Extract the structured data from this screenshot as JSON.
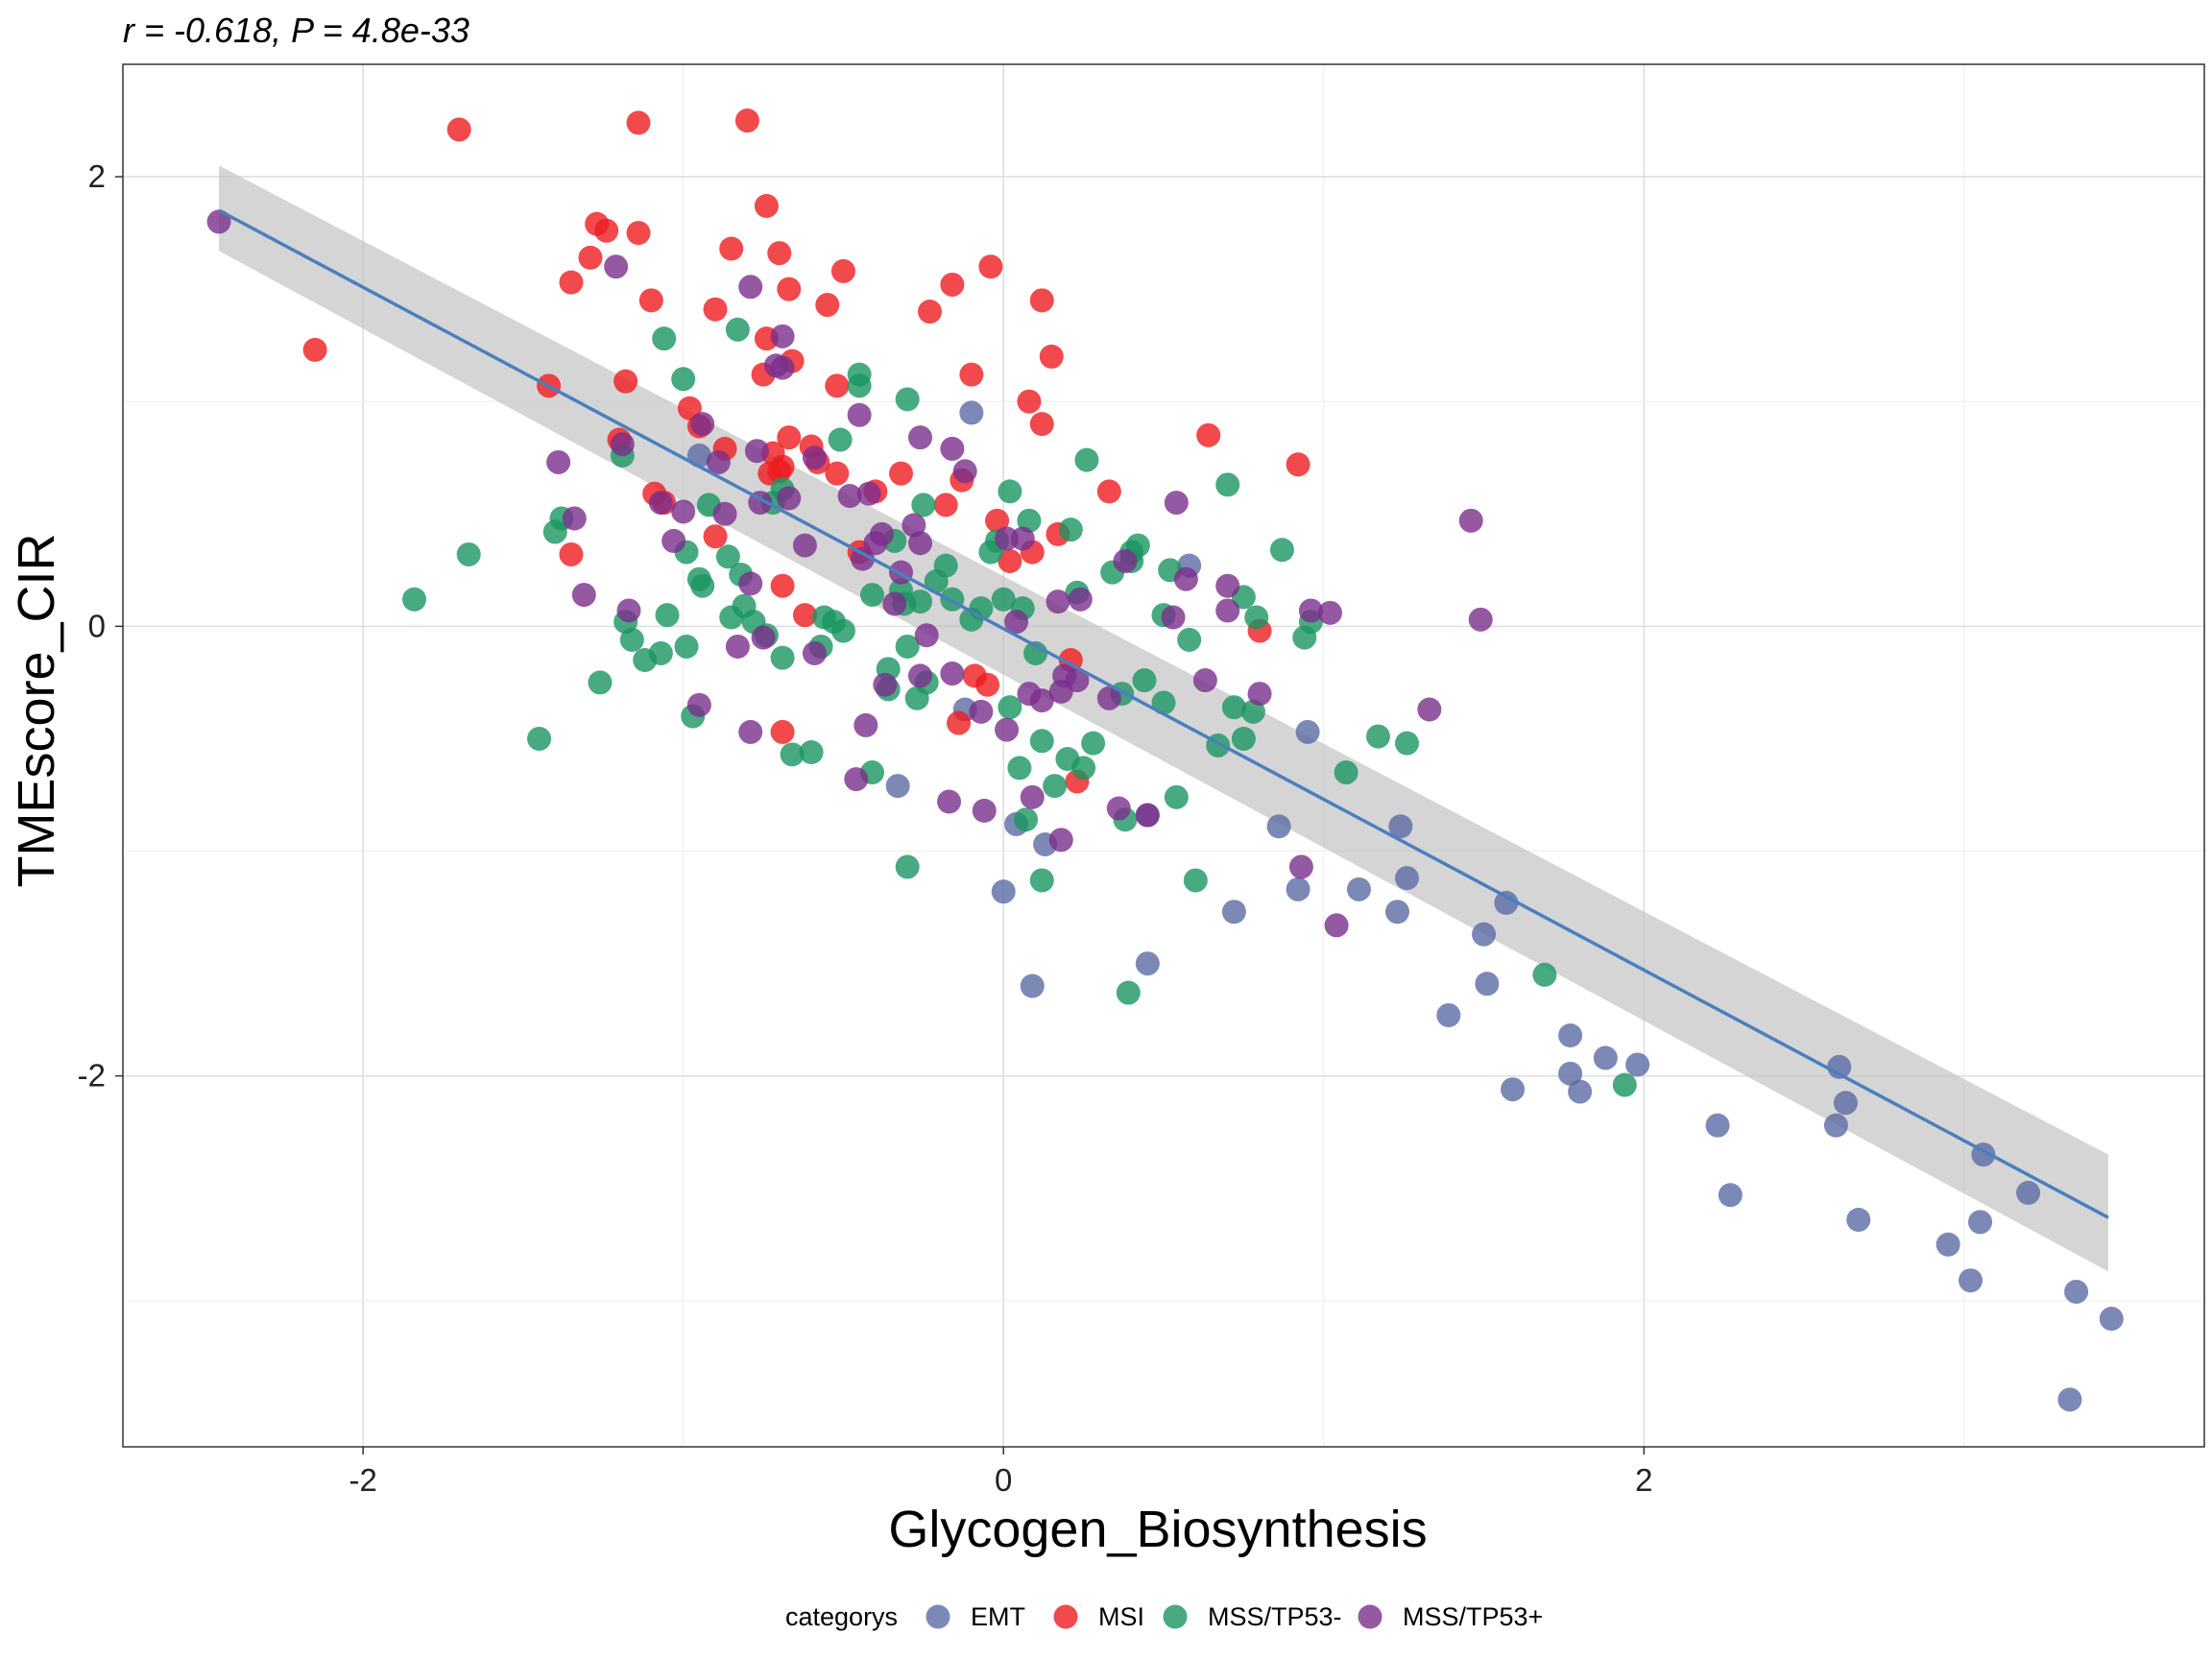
{
  "chart_data": {
    "type": "scatter",
    "title": "",
    "subtitle": "r = -0.618,  P = 4.8e-33",
    "xlabel": "Glycogen_Biosynthesis",
    "ylabel": "TMEscore_CIR",
    "xlim": [
      -2.75,
      3.75
    ],
    "ylim": [
      -3.65,
      2.5
    ],
    "x_ticks": [
      -2,
      0,
      2
    ],
    "x_tick_labels": [
      "-2",
      "0",
      "2"
    ],
    "y_ticks": [
      -2,
      0,
      2
    ],
    "y_tick_labels": [
      "-2",
      "0",
      "2"
    ],
    "grid": true,
    "legend": {
      "title": "categorys",
      "position": "bottom",
      "entries": [
        "EMT",
        "MSI",
        "MSS/TP53-",
        "MSS/TP53+"
      ]
    },
    "colors": {
      "EMT": "#5b6aa4",
      "MSI": "#ee1c1f",
      "MSS/TP53-": "#1a9560",
      "MSS/TP53+": "#7a2e8c",
      "trend_line": "#4a7fbf",
      "confidence_band": "#bfbfbf"
    },
    "trend_line": {
      "x": [
        -2.45,
        3.45
      ],
      "y": [
        1.85,
        -2.63
      ],
      "ci_lower": [
        1.67,
        -2.87
      ],
      "ci_upper": [
        2.05,
        -2.35
      ]
    },
    "series": [
      {
        "name": "EMT",
        "points": [
          [
            -0.1,
            0.95
          ],
          [
            -0.95,
            0.76
          ],
          [
            -0.12,
            -0.37
          ],
          [
            -0.33,
            -0.71
          ],
          [
            0,
            -1.18
          ],
          [
            0.04,
            -0.88
          ],
          [
            0.09,
            -1.6
          ],
          [
            0.13,
            -0.97
          ],
          [
            0.45,
            -1.5
          ],
          [
            0.45,
            -0.84
          ],
          [
            0.58,
            0.27
          ],
          [
            0.72,
            -1.27
          ],
          [
            0.86,
            -0.89
          ],
          [
            0.92,
            -1.17
          ],
          [
            0.95,
            -0.47
          ],
          [
            1.11,
            -1.17
          ],
          [
            1.23,
            -1.27
          ],
          [
            1.24,
            -0.89
          ],
          [
            1.26,
            -1.12
          ],
          [
            1.39,
            -1.73
          ],
          [
            1.5,
            -1.37
          ],
          [
            1.51,
            -1.59
          ],
          [
            1.57,
            -1.23
          ],
          [
            1.59,
            -2.06
          ],
          [
            1.77,
            -1.82
          ],
          [
            1.77,
            -1.99
          ],
          [
            1.8,
            -2.07
          ],
          [
            1.88,
            -1.92
          ],
          [
            1.98,
            -1.95
          ],
          [
            2.23,
            -2.22
          ],
          [
            2.27,
            -2.53
          ],
          [
            2.61,
            -1.96
          ],
          [
            2.6,
            -2.22
          ],
          [
            2.63,
            -2.12
          ],
          [
            2.67,
            -2.64
          ],
          [
            2.95,
            -2.75
          ],
          [
            3.02,
            -2.91
          ],
          [
            3.05,
            -2.65
          ],
          [
            3.06,
            -2.35
          ],
          [
            3.2,
            -2.52
          ],
          [
            3.33,
            -3.44
          ],
          [
            3.35,
            -2.96
          ],
          [
            3.46,
            -3.08
          ]
        ]
      },
      {
        "name": "MSI",
        "points": [
          [
            -2.15,
            1.23
          ],
          [
            -1.7,
            2.21
          ],
          [
            -1.42,
            1.07
          ],
          [
            -1.35,
            0.32
          ],
          [
            -1.35,
            1.53
          ],
          [
            -1.29,
            1.64
          ],
          [
            -1.27,
            1.79
          ],
          [
            -1.24,
            1.76
          ],
          [
            -1.2,
            0.83
          ],
          [
            -1.18,
            1.09
          ],
          [
            -1.14,
            2.24
          ],
          [
            -1.14,
            1.75
          ],
          [
            -1.1,
            1.45
          ],
          [
            -1.09,
            0.59
          ],
          [
            -1.06,
            0.55
          ],
          [
            -0.98,
            0.97
          ],
          [
            -0.95,
            0.89
          ],
          [
            -0.9,
            1.41
          ],
          [
            -0.9,
            0.4
          ],
          [
            -0.87,
            0.79
          ],
          [
            -0.85,
            1.68
          ],
          [
            -0.8,
            2.25
          ],
          [
            -0.75,
            1.12
          ],
          [
            -0.74,
            1.28
          ],
          [
            -0.74,
            1.87
          ],
          [
            -0.73,
            0.68
          ],
          [
            -0.72,
            0.77
          ],
          [
            -0.7,
            0.69
          ],
          [
            -0.7,
            1.66
          ],
          [
            -0.69,
            0.71
          ],
          [
            -0.69,
            0.18
          ],
          [
            -0.69,
            -0.47
          ],
          [
            -0.67,
            1.5
          ],
          [
            -0.67,
            0.84
          ],
          [
            -0.66,
            1.18
          ],
          [
            -0.62,
            0.05
          ],
          [
            -0.6,
            0.8
          ],
          [
            -0.58,
            0.73
          ],
          [
            -0.55,
            1.43
          ],
          [
            -0.52,
            1.07
          ],
          [
            -0.52,
            0.68
          ],
          [
            -0.5,
            1.58
          ],
          [
            -0.45,
            0.33
          ],
          [
            -0.4,
            0.6
          ],
          [
            -0.32,
            0.68
          ],
          [
            -0.23,
            1.4
          ],
          [
            -0.18,
            0.54
          ],
          [
            -0.16,
            1.52
          ],
          [
            -0.13,
            0.65
          ],
          [
            -0.1,
            1.12
          ],
          [
            -0.09,
            -0.22
          ],
          [
            -0.05,
            -0.26
          ],
          [
            -0.14,
            -0.43
          ],
          [
            -0.04,
            1.6
          ],
          [
            -0.02,
            0.47
          ],
          [
            0.02,
            0.29
          ],
          [
            0.08,
            1.0
          ],
          [
            0.09,
            0.33
          ],
          [
            0.12,
            0.9
          ],
          [
            0.12,
            1.45
          ],
          [
            0.15,
            1.2
          ],
          [
            0.17,
            0.41
          ],
          [
            0.21,
            -0.15
          ],
          [
            0.23,
            -0.69
          ],
          [
            0.33,
            0.6
          ],
          [
            0.64,
            0.85
          ],
          [
            0.8,
            -0.02
          ],
          [
            0.92,
            0.72
          ]
        ]
      },
      {
        "name": "MSS/TP53-",
        "points": [
          [
            -1.84,
            0.12
          ],
          [
            -1.67,
            0.32
          ],
          [
            -1.45,
            -0.5
          ],
          [
            -1.4,
            0.42
          ],
          [
            -1.38,
            0.48
          ],
          [
            -1.26,
            -0.25
          ],
          [
            -1.19,
            0.76
          ],
          [
            -1.18,
            0.02
          ],
          [
            -1.16,
            -0.06
          ],
          [
            -1.12,
            -0.15
          ],
          [
            -1.07,
            -0.12
          ],
          [
            -1.06,
            1.28
          ],
          [
            -1.05,
            0.05
          ],
          [
            -1.0,
            1.1
          ],
          [
            -0.99,
            0.33
          ],
          [
            -0.99,
            -0.09
          ],
          [
            -0.97,
            -0.4
          ],
          [
            -0.95,
            0.21
          ],
          [
            -0.94,
            0.18
          ],
          [
            -0.92,
            0.54
          ],
          [
            -0.86,
            0.31
          ],
          [
            -0.85,
            0.04
          ],
          [
            -0.83,
            1.32
          ],
          [
            -0.82,
            0.23
          ],
          [
            -0.81,
            0.09
          ],
          [
            -0.78,
            0.02
          ],
          [
            -0.74,
            -0.04
          ],
          [
            -0.72,
            0.55
          ],
          [
            -0.69,
            0.61
          ],
          [
            -0.69,
            -0.14
          ],
          [
            -0.66,
            -0.57
          ],
          [
            -0.6,
            -0.56
          ],
          [
            -0.57,
            -0.09
          ],
          [
            -0.56,
            0.04
          ],
          [
            -0.53,
            0.02
          ],
          [
            -0.51,
            0.83
          ],
          [
            -0.5,
            -0.02
          ],
          [
            -0.45,
            1.12
          ],
          [
            -0.45,
            1.07
          ],
          [
            -0.41,
            0.14
          ],
          [
            -0.41,
            -0.65
          ],
          [
            -0.36,
            -0.19
          ],
          [
            -0.36,
            -0.28
          ],
          [
            -0.34,
            0.38
          ],
          [
            -0.32,
            0.16
          ],
          [
            -0.31,
            0.1
          ],
          [
            -0.3,
            -0.09
          ],
          [
            -0.3,
            1.01
          ],
          [
            -0.3,
            -1.07
          ],
          [
            -0.27,
            -0.32
          ],
          [
            -0.26,
            0.11
          ],
          [
            -0.25,
            0.54
          ],
          [
            -0.24,
            -0.25
          ],
          [
            -0.21,
            0.2
          ],
          [
            -0.18,
            0.27
          ],
          [
            -0.16,
            0.12
          ],
          [
            -0.1,
            0.03
          ],
          [
            -0.07,
            0.08
          ],
          [
            -0.04,
            0.33
          ],
          [
            -0.02,
            0.38
          ],
          [
            0,
            0.12
          ],
          [
            0.02,
            0.6
          ],
          [
            0.02,
            -0.36
          ],
          [
            0.05,
            -0.63
          ],
          [
            0.06,
            0.08
          ],
          [
            0.07,
            -0.86
          ],
          [
            0.08,
            0.47
          ],
          [
            0.1,
            -0.12
          ],
          [
            0.12,
            -1.13
          ],
          [
            0.12,
            -0.51
          ],
          [
            0.16,
            -0.71
          ],
          [
            0.2,
            -0.59
          ],
          [
            0.21,
            0.43
          ],
          [
            0.23,
            0.15
          ],
          [
            0.25,
            -0.63
          ],
          [
            0.26,
            0.74
          ],
          [
            0.28,
            -0.52
          ],
          [
            0.34,
            0.24
          ],
          [
            0.37,
            -0.3
          ],
          [
            0.38,
            -0.86
          ],
          [
            0.39,
            -1.63
          ],
          [
            0.4,
            0.33
          ],
          [
            0.42,
            0.36
          ],
          [
            0.4,
            0.29
          ],
          [
            0.44,
            -0.24
          ],
          [
            0.5,
            -0.34
          ],
          [
            0.5,
            0.05
          ],
          [
            0.52,
            0.25
          ],
          [
            0.54,
            -0.76
          ],
          [
            0.58,
            -0.06
          ],
          [
            0.6,
            -1.13
          ],
          [
            0.67,
            -0.53
          ],
          [
            0.7,
            0.63
          ],
          [
            0.72,
            -0.36
          ],
          [
            0.75,
            -0.5
          ],
          [
            0.75,
            0.13
          ],
          [
            0.78,
            -0.38
          ],
          [
            0.79,
            0.04
          ],
          [
            0.87,
            0.34
          ],
          [
            0.94,
            -0.05
          ],
          [
            0.96,
            0.02
          ],
          [
            1.07,
            -0.65
          ],
          [
            1.17,
            -0.49
          ],
          [
            1.26,
            -0.52
          ],
          [
            1.69,
            -1.55
          ],
          [
            1.94,
            -2.04
          ]
        ]
      },
      {
        "name": "MSS/TP53+",
        "points": [
          [
            -2.45,
            1.8
          ],
          [
            -1.39,
            0.73
          ],
          [
            -1.34,
            0.48
          ],
          [
            -1.31,
            0.14
          ],
          [
            -1.21,
            1.6
          ],
          [
            -1.19,
            0.81
          ],
          [
            -1.17,
            0.07
          ],
          [
            -1.07,
            0.55
          ],
          [
            -1.03,
            0.38
          ],
          [
            -1.0,
            0.51
          ],
          [
            -0.95,
            -0.35
          ],
          [
            -0.94,
            0.9
          ],
          [
            -0.89,
            0.73
          ],
          [
            -0.87,
            0.5
          ],
          [
            -0.83,
            -0.09
          ],
          [
            -0.79,
            1.51
          ],
          [
            -0.79,
            -0.47
          ],
          [
            -0.79,
            0.19
          ],
          [
            -0.77,
            0.78
          ],
          [
            -0.76,
            0.55
          ],
          [
            -0.75,
            -0.05
          ],
          [
            -0.71,
            1.16
          ],
          [
            -0.69,
            1.15
          ],
          [
            -0.69,
            1.29
          ],
          [
            -0.67,
            0.57
          ],
          [
            -0.62,
            0.36
          ],
          [
            -0.59,
            0.75
          ],
          [
            -0.59,
            -0.12
          ],
          [
            -0.48,
            0.58
          ],
          [
            -0.46,
            -0.68
          ],
          [
            -0.45,
            0.94
          ],
          [
            -0.44,
            0.3
          ],
          [
            -0.43,
            -0.44
          ],
          [
            -0.42,
            0.59
          ],
          [
            -0.4,
            0.37
          ],
          [
            -0.38,
            0.41
          ],
          [
            -0.37,
            -0.26
          ],
          [
            -0.34,
            0.1
          ],
          [
            -0.32,
            0.24
          ],
          [
            -0.28,
            0.45
          ],
          [
            -0.26,
            0.37
          ],
          [
            -0.26,
            0.84
          ],
          [
            -0.26,
            -0.22
          ],
          [
            -0.24,
            -0.04
          ],
          [
            -0.17,
            -0.78
          ],
          [
            -0.16,
            -0.21
          ],
          [
            -0.16,
            0.79
          ],
          [
            -0.12,
            0.69
          ],
          [
            -0.07,
            -0.38
          ],
          [
            -0.06,
            -0.82
          ],
          [
            0.01,
            -0.46
          ],
          [
            0.01,
            0.39
          ],
          [
            0.04,
            0.02
          ],
          [
            0.06,
            0.39
          ],
          [
            0.08,
            -0.3
          ],
          [
            0.09,
            -0.76
          ],
          [
            0.12,
            -0.33
          ],
          [
            0.17,
            0.11
          ],
          [
            0.18,
            -0.29
          ],
          [
            0.18,
            -0.95
          ],
          [
            0.19,
            -0.22
          ],
          [
            0.23,
            -0.24
          ],
          [
            0.24,
            0.12
          ],
          [
            0.33,
            -0.32
          ],
          [
            0.36,
            -0.81
          ],
          [
            0.38,
            0.29
          ],
          [
            0.45,
            -0.84
          ],
          [
            0.53,
            0.04
          ],
          [
            0.54,
            0.55
          ],
          [
            0.57,
            0.21
          ],
          [
            0.63,
            -0.24
          ],
          [
            0.7,
            0.18
          ],
          [
            0.7,
            0.07
          ],
          [
            0.8,
            -0.3
          ],
          [
            0.93,
            -1.07
          ],
          [
            0.96,
            0.07
          ],
          [
            1.02,
            0.06
          ],
          [
            1.04,
            -1.33
          ],
          [
            1.33,
            -0.37
          ],
          [
            1.46,
            0.47
          ],
          [
            1.49,
            0.03
          ]
        ]
      }
    ]
  }
}
